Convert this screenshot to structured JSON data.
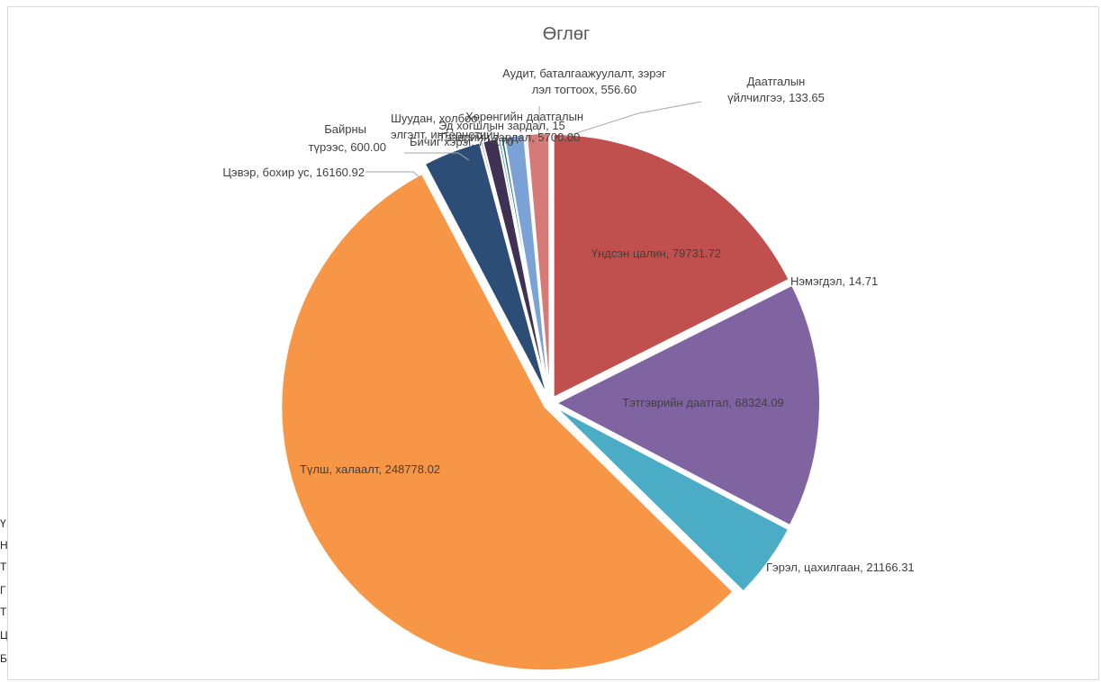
{
  "sheet": {
    "row_stubs": [
      "Ү",
      "Н",
      "Т",
      "Г",
      "Т",
      "Ц",
      "Б"
    ]
  },
  "chart_data": {
    "type": "pie",
    "title": "Өглөг",
    "exploded": true,
    "start": "12 o'clock, clockwise",
    "slices": [
      {
        "label": "Үндсэн цалин, 79731.72",
        "name": "Үндсэн цалин",
        "value": 79731.72,
        "color": "#c0504d"
      },
      {
        "label": "Нэмэгдэл, 14.71",
        "name": "Нэмэгдэл",
        "value": 14.71,
        "color": "#c0504d"
      },
      {
        "label": "Тэтгэврийн даатгал, 68324.09",
        "name": "Тэтгэврийн даатгал",
        "value": 68324.09,
        "color": "#8064a2"
      },
      {
        "label": "Гэрэл, цахилгаан, 21166.31",
        "name": "Гэрэл, цахилгаан",
        "value": 21166.31,
        "color": "#4bacc6"
      },
      {
        "label": "Түлш, халаалт, 248778.02",
        "name": "Түлш, халаалт",
        "value": 248778.02,
        "color": "#f79646"
      },
      {
        "label": "Цэвэр, бохир ус, 16160.92",
        "name": "Цэвэр, бохир ус",
        "value": 16160.92,
        "color": "#2c4d75"
      },
      {
        "label": "Байрны түрээс, 600.00",
        "name": "Байрны түрээс",
        "value": 600.0,
        "color": "#4d3b62"
      },
      {
        "label": "Шуудан, холбоо, интернетийн төлбөр",
        "name": "Шуудан, холбоо, интернетийн төлбөр",
        "value": 4200.0,
        "color": "#3e3151"
      },
      {
        "label": "Бичиг хэрэг, 726.70",
        "name": "Бичиг хэрэг",
        "value": 726.7,
        "color": "#2e8a9c"
      },
      {
        "label": "",
        "name": "",
        "value": 900.0,
        "color": "#1f6f7f"
      },
      {
        "label": "",
        "name": "",
        "value": 5500.0,
        "color": "#7ba2d6"
      },
      {
        "label": "Аудит, баталгаажуулалт, зэрэглэл тогтоох, 556.60",
        "name": "Аудит, баталгаажуулалт, зэрэглэл тогтоох",
        "value": 556.6,
        "color": "#d48a87"
      },
      {
        "label": "",
        "name": "",
        "value": 6200.0,
        "color": "#d67a78"
      },
      {
        "label": "Даатгалын үйлчилгээ, 133.65",
        "name": "Даатгалын үйлчилгээ",
        "value": 133.65,
        "color": "#e8a9a6"
      }
    ],
    "labels": {
      "slice_0": "Үндсэн цалин, 79731.72",
      "slice_1": "Нэмэгдэл, 14.71",
      "slice_2": "Тэтгэврийн даатгал, 68324.09",
      "slice_3": "Гэрэл, цахилгаан, 21166.31",
      "slice_4": "Түлш, халаалт, 248778.02",
      "slice_5": "Цэвэр, бохир ус, 16160.92",
      "slice_6_l1": "Байрны",
      "slice_6_l2": "түрээс, 600.00",
      "slice_7_l1": "Шуудан, холбоо,",
      "slice_7_l2": "элгэлт, интернетийн",
      "slice_8": "Бичиг хэрэг, 726.70",
      "slice_11_l1": "Аудит, баталгаажуулалт, зэрэг",
      "slice_11_l2": "лэл тогтоох, 556.60",
      "slice_13_l1": "Даатгалын",
      "slice_13_l2": "үйлчилгээ, 133.65",
      "overlap_1": "Хөрөнгийн даатгалын",
      "overlap_2": "Эд хогшлын зардал, 15",
      "overlap_3": "Тээврийн зардал, 5700.00"
    }
  }
}
